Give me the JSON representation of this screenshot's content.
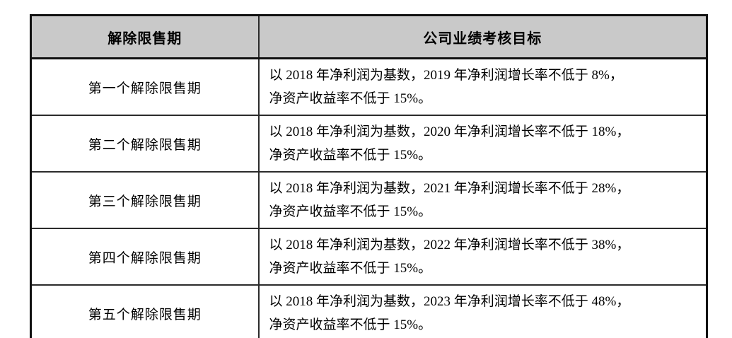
{
  "colors": {
    "header_bg": "#c9c9c9",
    "border_dark": "#111111",
    "grid": "#2b2b2b",
    "text": "#000000",
    "page_bg": "#ffffff"
  },
  "table": {
    "headers": [
      {
        "label": "解除限售期"
      },
      {
        "label": "公司业绩考核目标"
      }
    ],
    "rows": [
      {
        "period": "第一个解除限售期",
        "target_line1": "以 2018 年净利润为基数，2019 年净利润增长率不低于 8%，",
        "target_line2": "净资产收益率不低于 15%。"
      },
      {
        "period": "第二个解除限售期",
        "target_line1": "以 2018 年净利润为基数，2020 年净利润增长率不低于 18%，",
        "target_line2": "净资产收益率不低于 15%。"
      },
      {
        "period": "第三个解除限售期",
        "target_line1": "以 2018 年净利润为基数，2021 年净利润增长率不低于 28%，",
        "target_line2": "净资产收益率不低于 15%。"
      },
      {
        "period": "第四个解除限售期",
        "target_line1": "以 2018 年净利润为基数，2022 年净利润增长率不低于 38%，",
        "target_line2": "净资产收益率不低于 15%。"
      },
      {
        "period": "第五个解除限售期",
        "target_line1": "以 2018 年净利润为基数，2023 年净利润增长率不低于 48%，",
        "target_line2": "净资产收益率不低于 15%。"
      }
    ]
  }
}
